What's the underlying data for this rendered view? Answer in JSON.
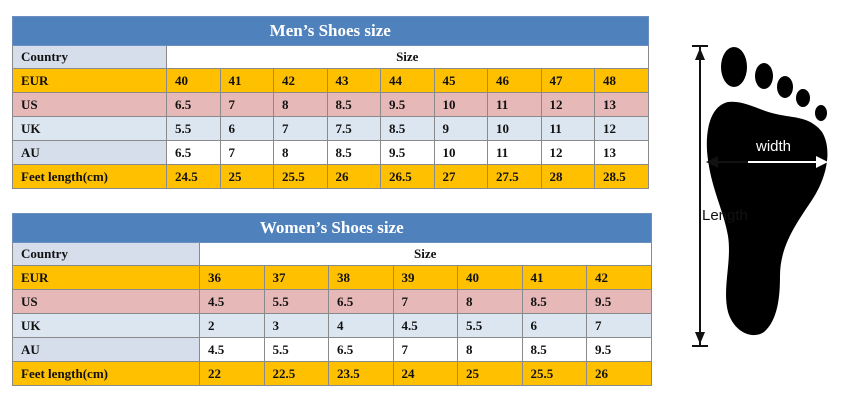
{
  "men": {
    "title": "Men’s Shoes size",
    "country_label": "Country",
    "size_label": "Size",
    "rows": [
      {
        "key": "eur",
        "label": "EUR",
        "values": [
          "40",
          "41",
          "42",
          "43",
          "44",
          "45",
          "46",
          "47",
          "48"
        ]
      },
      {
        "key": "us",
        "label": "US",
        "values": [
          "6.5",
          "7",
          "8",
          "8.5",
          "9.5",
          "10",
          "11",
          "12",
          "13"
        ]
      },
      {
        "key": "uk",
        "label": "UK",
        "values": [
          "5.5",
          "6",
          "7",
          "7.5",
          "8.5",
          "9",
          "10",
          "11",
          "12"
        ]
      },
      {
        "key": "au",
        "label": "AU",
        "values": [
          "6.5",
          "7",
          "8",
          "8.5",
          "9.5",
          "10",
          "11",
          "12",
          "13"
        ]
      },
      {
        "key": "feet",
        "label": "Feet length(cm)",
        "values": [
          "24.5",
          "25",
          "25.5",
          "26",
          "26.5",
          "27",
          "27.5",
          "28",
          "28.5"
        ]
      }
    ]
  },
  "women": {
    "title": "Women’s Shoes size",
    "country_label": "Country",
    "size_label": "Size",
    "rows": [
      {
        "key": "eur",
        "label": "EUR",
        "values": [
          "36",
          "37",
          "38",
          "39",
          "40",
          "41",
          "42"
        ]
      },
      {
        "key": "us",
        "label": "US",
        "values": [
          "4.5",
          "5.5",
          "6.5",
          "7",
          "8",
          "8.5",
          "9.5"
        ]
      },
      {
        "key": "uk",
        "label": "UK",
        "values": [
          "2",
          "3",
          "4",
          "4.5",
          "5.5",
          "6",
          "7"
        ]
      },
      {
        "key": "au",
        "label": "AU",
        "values": [
          "4.5",
          "5.5",
          "6.5",
          "7",
          "8",
          "8.5",
          "9.5"
        ]
      },
      {
        "key": "feet",
        "label": "Feet length(cm)",
        "values": [
          "22",
          "22.5",
          "23.5",
          "24",
          "25",
          "25.5",
          "26"
        ]
      }
    ]
  },
  "diagram": {
    "width_label": "width",
    "length_label": "Length"
  },
  "colors": {
    "title_bar": "#4f81bd",
    "eur_row": "#ffc000",
    "us_row": "#e6b8b7",
    "uk_row": "#dce6f1"
  }
}
